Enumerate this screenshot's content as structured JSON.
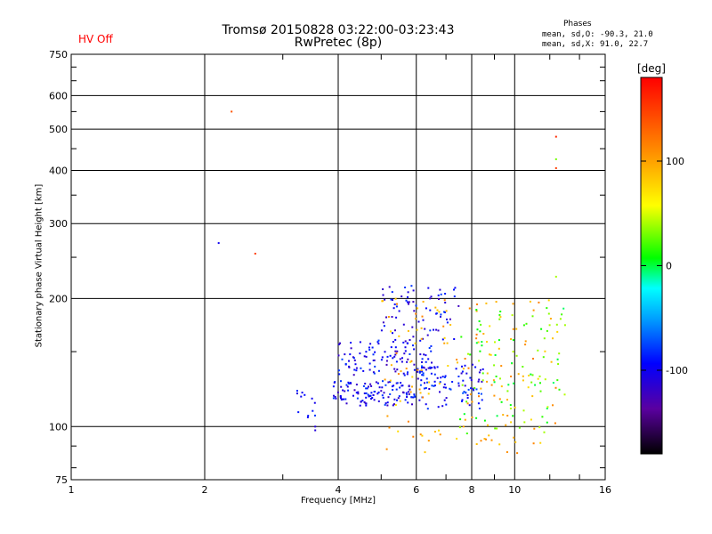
{
  "header": {
    "title_line1": "Tromsø 20150828 03:22:00-03:23:43",
    "title_line2": "RwPretec (8p)",
    "status": "HV Off"
  },
  "phases_box": {
    "title": "Phases",
    "line_o": "mean, sd,O: -90.3, 21.0",
    "line_x": "mean, sd,X:  91.0, 22.7"
  },
  "colorbar": {
    "unit": "[deg]",
    "ticks": [
      "100",
      "0",
      "-100"
    ],
    "tick_values": [
      100,
      0,
      -100
    ],
    "range": [
      -180,
      180
    ]
  },
  "chart_data": {
    "type": "scatter",
    "title": "Tromsø 20150828 03:22:00-03:23:43",
    "subtitle": "RwPretec (8p)",
    "xlabel": "Frequency [MHz]",
    "ylabel": "Stationary phase Virtual Height [km]",
    "x_scale": "log",
    "y_scale": "log",
    "xlim": [
      1,
      16
    ],
    "ylim": [
      75,
      750
    ],
    "x_ticks": [
      1,
      2,
      4,
      6,
      8,
      10,
      16
    ],
    "x_tick_labels": [
      "1",
      "2",
      "4",
      "6",
      "8",
      "10",
      "16"
    ],
    "y_ticks": [
      75,
      100,
      200,
      300,
      400,
      500,
      600,
      750
    ],
    "y_tick_labels": [
      "75",
      "100",
      "200",
      "300",
      "400",
      "500",
      "600",
      "750"
    ],
    "grid": true,
    "point_color_encodes": "phase [deg]",
    "clusters": [
      {
        "name": "O-mode lower trace",
        "x_range": [
          3.9,
          6.0
        ],
        "y_range": [
          112,
          128
        ],
        "phase": -100,
        "n": 120
      },
      {
        "name": "O-mode upper trace",
        "x_range": [
          4.0,
          6.5
        ],
        "y_range": [
          132,
          160
        ],
        "phase": -100,
        "n": 110
      },
      {
        "name": "O-mode trace 6-8 MHz",
        "x_range": [
          6.0,
          8.5
        ],
        "y_range": [
          110,
          140
        ],
        "phase": -95,
        "n": 90
      },
      {
        "name": "O-mode high",
        "x_range": [
          5.0,
          7.5
        ],
        "y_range": [
          160,
          215
        ],
        "phase": -100,
        "n": 70
      },
      {
        "name": "low-freq group",
        "x_range": [
          3.2,
          3.6
        ],
        "y_range": [
          105,
          122
        ],
        "phase": -100,
        "n": 12
      },
      {
        "name": "X-mode scatter",
        "x_range": [
          5.0,
          12.5
        ],
        "y_range": [
          85,
          200
        ],
        "phase": 95,
        "n": 150
      },
      {
        "name": "mixed scatter",
        "x_range": [
          7.5,
          13.0
        ],
        "y_range": [
          95,
          190
        ],
        "phase": 20,
        "n": 90
      }
    ],
    "isolated_points": [
      {
        "x": 2.3,
        "y": 550,
        "phase": 140
      },
      {
        "x": 2.15,
        "y": 270,
        "phase": -100
      },
      {
        "x": 2.6,
        "y": 255,
        "phase": 150
      },
      {
        "x": 3.55,
        "y": 100,
        "phase": -110
      },
      {
        "x": 3.55,
        "y": 98,
        "phase": -110
      },
      {
        "x": 12.4,
        "y": 480,
        "phase": 160
      },
      {
        "x": 12.4,
        "y": 425,
        "phase": 30
      },
      {
        "x": 12.4,
        "y": 405,
        "phase": 150
      },
      {
        "x": 12.4,
        "y": 225,
        "phase": 40
      }
    ]
  }
}
